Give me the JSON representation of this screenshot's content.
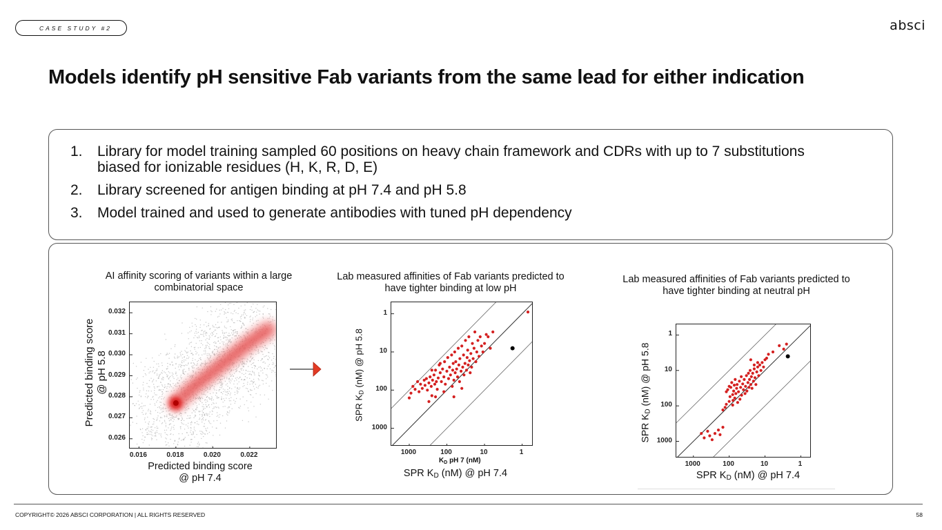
{
  "header": {
    "tag": "CASE STUDY #2",
    "logo": "absci"
  },
  "title": "Models identify pH sensitive Fab variants from the same lead for either indication",
  "points": [
    {
      "num": "1.",
      "text": "Library for model training sampled 60 positions on heavy chain framework and CDRs with up to 7 substitutions biased for ionizable residues (H, K, R, D, E)"
    },
    {
      "num": "2.",
      "text": "Library screened for antigen binding at pH 7.4 and pH 5.8"
    },
    {
      "num": "3.",
      "text": "Model trained and used to generate antibodies with tuned pH dependency"
    }
  ],
  "footer": {
    "copyright": "COPYRIGHT© 2026 ABSCI CORPORATION | ALL RIGHTS RESERVED",
    "page": "58"
  },
  "colors": {
    "red": "#d42020",
    "grey": "#9a9a9a",
    "arrow": "#e23b24"
  },
  "chart_data": [
    {
      "type": "heatmap",
      "title": "AI affinity scoring of variants within a large combinatorial space",
      "xlabel_line1": "Predicted binding score",
      "xlabel_line2": "@ pH 7.4",
      "ylabel_line1": "Predicted binding score",
      "ylabel_line2": "@ pH 5.8",
      "xticks": [
        "0.016",
        "0.018",
        "0.020",
        "0.022"
      ],
      "yticks": [
        "0.032",
        "0.031",
        "0.030",
        "0.029",
        "0.028",
        "0.027",
        "0.026"
      ],
      "xlim": [
        0.0155,
        0.0235
      ],
      "ylim": [
        0.0255,
        0.0325
      ],
      "density_ridge": [
        [
          0.0175,
          0.027
        ],
        [
          0.018,
          0.0277
        ],
        [
          0.019,
          0.0285
        ],
        [
          0.02,
          0.0292
        ],
        [
          0.021,
          0.0299
        ],
        [
          0.022,
          0.0306
        ],
        [
          0.023,
          0.0312
        ]
      ],
      "peak": [
        0.018,
        0.0277
      ]
    },
    {
      "type": "scatter",
      "title": "Lab measured affinities of Fab variants predicted to have tighter binding at low pH",
      "xlabel_prefix": "SPR K",
      "xlabel_sub": "D",
      "xlabel_suffix": " (nM) @ pH 7.4",
      "ylabel_prefix": "SPR K",
      "ylabel_sub": "D",
      "ylabel_suffix": " (nM) @ pH 5.8",
      "inner_xlabel_prefix": "K",
      "inner_xlabel_sub": "D",
      "inner_xlabel_suffix": " pH 7 (nM)",
      "xticks": [
        "1000",
        "100",
        "10",
        "1"
      ],
      "yticks": [
        "1",
        "10",
        "100",
        "1000"
      ],
      "scale": "log (reversed axes)",
      "xlim": [
        3000,
        0.5
      ],
      "ylim": [
        0.5,
        3000
      ],
      "lead": [
        1.8,
        8
      ],
      "points": [
        [
          1000,
          160
        ],
        [
          900,
          120
        ],
        [
          800,
          80
        ],
        [
          700,
          95
        ],
        [
          600,
          60
        ],
        [
          550,
          110
        ],
        [
          500,
          70
        ],
        [
          450,
          90
        ],
        [
          400,
          55
        ],
        [
          380,
          75
        ],
        [
          350,
          50
        ],
        [
          330,
          100
        ],
        [
          300,
          65
        ],
        [
          280,
          45
        ],
        [
          260,
          80
        ],
        [
          250,
          140
        ],
        [
          240,
          55
        ],
        [
          220,
          40
        ],
        [
          210,
          70
        ],
        [
          200,
          30
        ],
        [
          190,
          60
        ],
        [
          180,
          95
        ],
        [
          170,
          48
        ],
        [
          160,
          22
        ],
        [
          150,
          35
        ],
        [
          140,
          60
        ],
        [
          130,
          28
        ],
        [
          120,
          45
        ],
        [
          115,
          18
        ],
        [
          110,
          70
        ],
        [
          100,
          32
        ],
        [
          95,
          14
        ],
        [
          90,
          50
        ],
        [
          85,
          25
        ],
        [
          80,
          40
        ],
        [
          75,
          12
        ],
        [
          72,
          80
        ],
        [
          70,
          30
        ],
        [
          68,
          20
        ],
        [
          65,
          55
        ],
        [
          62,
          10
        ],
        [
          60,
          35
        ],
        [
          58,
          18
        ],
        [
          55,
          28
        ],
        [
          52,
          45
        ],
        [
          50,
          8
        ],
        [
          48,
          22
        ],
        [
          46,
          60
        ],
        [
          45,
          15
        ],
        [
          42,
          32
        ],
        [
          40,
          7
        ],
        [
          38,
          25
        ],
        [
          36,
          12
        ],
        [
          35,
          40
        ],
        [
          33,
          20
        ],
        [
          32,
          5
        ],
        [
          30,
          30
        ],
        [
          29,
          14
        ],
        [
          28,
          9
        ],
        [
          27,
          22
        ],
        [
          26,
          4
        ],
        [
          25,
          17
        ],
        [
          24,
          35
        ],
        [
          23,
          11
        ],
        [
          22,
          25
        ],
        [
          21,
          6
        ],
        [
          20,
          15
        ],
        [
          19,
          8
        ],
        [
          18,
          3
        ],
        [
          17,
          18
        ],
        [
          16,
          10
        ],
        [
          15,
          5
        ],
        [
          14,
          13
        ],
        [
          13,
          4
        ],
        [
          12,
          7
        ],
        [
          11,
          10
        ],
        [
          10,
          6
        ],
        [
          9,
          3.5
        ],
        [
          8,
          4
        ],
        [
          7,
          8
        ],
        [
          6,
          3
        ],
        [
          300,
          200
        ],
        [
          200,
          150
        ],
        [
          120,
          110
        ],
        [
          65,
          150
        ],
        [
          40,
          90
        ],
        [
          250,
          30
        ],
        [
          150,
          20
        ],
        [
          0.7,
          0.9
        ]
      ]
    },
    {
      "type": "scatter",
      "title": "Lab measured affinities of Fab variants predicted to have tighter binding at neutral pH",
      "xlabel_prefix": "SPR K",
      "xlabel_sub": "D",
      "xlabel_suffix": " (nM) @ pH 7.4",
      "ylabel_prefix": "SPR K",
      "ylabel_sub": "D",
      "ylabel_suffix": " (nM) @ pH 5.8",
      "xticks": [
        "1000",
        "100",
        "10",
        "1"
      ],
      "yticks": [
        "1",
        "10",
        "100",
        "1000"
      ],
      "scale": "log (reversed axes)",
      "xlim": [
        3000,
        0.5
      ],
      "ylim": [
        0.5,
        3000
      ],
      "lead": [
        2.3,
        4
      ],
      "points": [
        [
          120,
          40
        ],
        [
          110,
          35
        ],
        [
          100,
          28
        ],
        [
          95,
          55
        ],
        [
          90,
          30
        ],
        [
          85,
          22
        ],
        [
          80,
          48
        ],
        [
          78,
          70
        ],
        [
          75,
          38
        ],
        [
          72,
          26
        ],
        [
          70,
          60
        ],
        [
          68,
          18
        ],
        [
          65,
          45
        ],
        [
          62,
          32
        ],
        [
          60,
          25
        ],
        [
          58,
          80
        ],
        [
          55,
          40
        ],
        [
          52,
          20
        ],
        [
          50,
          65
        ],
        [
          48,
          30
        ],
        [
          46,
          15
        ],
        [
          45,
          50
        ],
        [
          42,
          24
        ],
        [
          40,
          35
        ],
        [
          38,
          18
        ],
        [
          36,
          45
        ],
        [
          35,
          28
        ],
        [
          33,
          14
        ],
        [
          32,
          38
        ],
        [
          30,
          22
        ],
        [
          29,
          12
        ],
        [
          28,
          30
        ],
        [
          27,
          18
        ],
        [
          26,
          10
        ],
        [
          25,
          25
        ],
        [
          24,
          15
        ],
        [
          23,
          32
        ],
        [
          22,
          12
        ],
        [
          21,
          20
        ],
        [
          20,
          9
        ],
        [
          19,
          16
        ],
        [
          18,
          25
        ],
        [
          17,
          11
        ],
        [
          16,
          8
        ],
        [
          15,
          14
        ],
        [
          14,
          7
        ],
        [
          13,
          10
        ],
        [
          12,
          6
        ],
        [
          11,
          8
        ],
        [
          10,
          5
        ],
        [
          9,
          4.5
        ],
        [
          8,
          3.5
        ],
        [
          6,
          3
        ],
        [
          4,
          2
        ],
        [
          3,
          2.5
        ],
        [
          130,
          110
        ],
        [
          120,
          90
        ],
        [
          100,
          75
        ],
        [
          150,
          130
        ],
        [
          80,
          95
        ],
        [
          20,
          7
        ],
        [
          16,
          6
        ],
        [
          25,
          5
        ],
        [
          600,
          600
        ],
        [
          500,
          800
        ],
        [
          400,
          520
        ],
        [
          350,
          700
        ],
        [
          300,
          900
        ],
        [
          250,
          600
        ],
        [
          200,
          480
        ],
        [
          180,
          650
        ],
        [
          150,
          400
        ],
        [
          2.5,
          1.8
        ]
      ]
    }
  ]
}
